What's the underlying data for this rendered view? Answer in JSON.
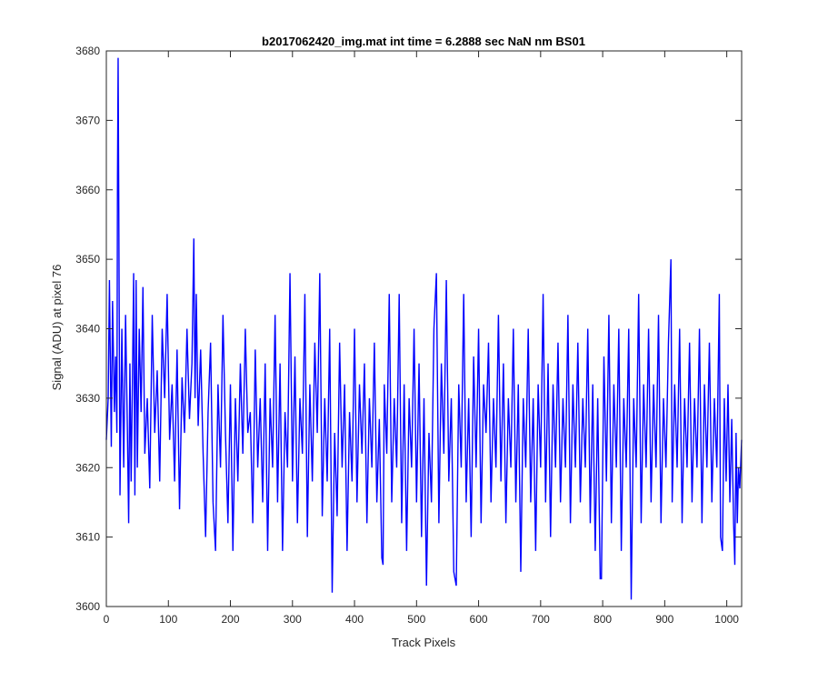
{
  "chart_data": {
    "type": "line",
    "title": "b2017062420_img.mat int time = 6.2888 sec  NaN nm BS01",
    "xlabel": "Track Pixels",
    "ylabel": "Signal (ADU) at pixel 76",
    "xlim": [
      0,
      1024
    ],
    "ylim": [
      3600,
      3680
    ],
    "xticks": [
      0,
      100,
      200,
      300,
      400,
      500,
      600,
      700,
      800,
      900,
      1000
    ],
    "yticks": [
      3600,
      3610,
      3620,
      3630,
      3640,
      3650,
      3660,
      3670,
      3680
    ],
    "grid": false,
    "series_color": "#0000ff",
    "series": [
      {
        "points": [
          [
            0,
            3624
          ],
          [
            3,
            3630
          ],
          [
            5,
            3647
          ],
          [
            8,
            3623
          ],
          [
            10,
            3644
          ],
          [
            13,
            3628
          ],
          [
            15,
            3636
          ],
          [
            17,
            3625
          ],
          [
            18,
            3662
          ],
          [
            19,
            3679
          ],
          [
            20,
            3659
          ],
          [
            22,
            3616
          ],
          [
            25,
            3640
          ],
          [
            28,
            3620
          ],
          [
            31,
            3642
          ],
          [
            34,
            3625
          ],
          [
            36,
            3612
          ],
          [
            38,
            3635
          ],
          [
            40,
            3618
          ],
          [
            42,
            3632
          ],
          [
            44,
            3648
          ],
          [
            46,
            3616
          ],
          [
            48,
            3647
          ],
          [
            50,
            3620
          ],
          [
            53,
            3640
          ],
          [
            56,
            3628
          ],
          [
            59,
            3646
          ],
          [
            62,
            3622
          ],
          [
            66,
            3630
          ],
          [
            70,
            3617
          ],
          [
            74,
            3642
          ],
          [
            78,
            3625
          ],
          [
            82,
            3634
          ],
          [
            86,
            3618
          ],
          [
            90,
            3640
          ],
          [
            94,
            3630
          ],
          [
            98,
            3645
          ],
          [
            102,
            3624
          ],
          [
            106,
            3632
          ],
          [
            110,
            3618
          ],
          [
            114,
            3637
          ],
          [
            118,
            3614
          ],
          [
            122,
            3633
          ],
          [
            126,
            3625
          ],
          [
            130,
            3640
          ],
          [
            134,
            3627
          ],
          [
            138,
            3635
          ],
          [
            141,
            3653
          ],
          [
            143,
            3630
          ],
          [
            145,
            3645
          ],
          [
            148,
            3626
          ],
          [
            152,
            3637
          ],
          [
            156,
            3622
          ],
          [
            160,
            3610
          ],
          [
            164,
            3628
          ],
          [
            168,
            3638
          ],
          [
            172,
            3615
          ],
          [
            176,
            3608
          ],
          [
            180,
            3632
          ],
          [
            184,
            3620
          ],
          [
            188,
            3642
          ],
          [
            192,
            3625
          ],
          [
            196,
            3612
          ],
          [
            200,
            3632
          ],
          [
            204,
            3608
          ],
          [
            208,
            3630
          ],
          [
            212,
            3618
          ],
          [
            216,
            3635
          ],
          [
            220,
            3622
          ],
          [
            224,
            3640
          ],
          [
            228,
            3625
          ],
          [
            232,
            3628
          ],
          [
            236,
            3612
          ],
          [
            240,
            3637
          ],
          [
            244,
            3620
          ],
          [
            248,
            3630
          ],
          [
            252,
            3615
          ],
          [
            256,
            3635
          ],
          [
            260,
            3608
          ],
          [
            264,
            3630
          ],
          [
            268,
            3620
          ],
          [
            272,
            3642
          ],
          [
            276,
            3615
          ],
          [
            280,
            3635
          ],
          [
            284,
            3608
          ],
          [
            288,
            3628
          ],
          [
            292,
            3620
          ],
          [
            296,
            3648
          ],
          [
            300,
            3618
          ],
          [
            304,
            3636
          ],
          [
            308,
            3612
          ],
          [
            312,
            3630
          ],
          [
            316,
            3622
          ],
          [
            320,
            3645
          ],
          [
            324,
            3610
          ],
          [
            328,
            3632
          ],
          [
            332,
            3618
          ],
          [
            336,
            3638
          ],
          [
            340,
            3625
          ],
          [
            344,
            3648
          ],
          [
            348,
            3613
          ],
          [
            352,
            3630
          ],
          [
            356,
            3618
          ],
          [
            360,
            3640
          ],
          [
            364,
            3602
          ],
          [
            368,
            3625
          ],
          [
            372,
            3613
          ],
          [
            376,
            3638
          ],
          [
            380,
            3620
          ],
          [
            384,
            3632
          ],
          [
            388,
            3608
          ],
          [
            392,
            3628
          ],
          [
            396,
            3618
          ],
          [
            400,
            3640
          ],
          [
            404,
            3615
          ],
          [
            408,
            3632
          ],
          [
            412,
            3622
          ],
          [
            416,
            3635
          ],
          [
            420,
            3612
          ],
          [
            424,
            3630
          ],
          [
            428,
            3620
          ],
          [
            432,
            3638
          ],
          [
            436,
            3615
          ],
          [
            440,
            3627
          ],
          [
            444,
            3607
          ],
          [
            446,
            3606
          ],
          [
            448,
            3632
          ],
          [
            452,
            3622
          ],
          [
            456,
            3645
          ],
          [
            460,
            3615
          ],
          [
            464,
            3630
          ],
          [
            468,
            3620
          ],
          [
            472,
            3645
          ],
          [
            476,
            3612
          ],
          [
            480,
            3632
          ],
          [
            484,
            3608
          ],
          [
            488,
            3630
          ],
          [
            492,
            3620
          ],
          [
            496,
            3640
          ],
          [
            500,
            3615
          ],
          [
            504,
            3635
          ],
          [
            508,
            3610
          ],
          [
            512,
            3630
          ],
          [
            516,
            3603
          ],
          [
            520,
            3625
          ],
          [
            524,
            3615
          ],
          [
            528,
            3640
          ],
          [
            532,
            3648
          ],
          [
            536,
            3612
          ],
          [
            540,
            3635
          ],
          [
            544,
            3622
          ],
          [
            548,
            3647
          ],
          [
            552,
            3618
          ],
          [
            556,
            3630
          ],
          [
            560,
            3605
          ],
          [
            564,
            3603
          ],
          [
            568,
            3632
          ],
          [
            572,
            3620
          ],
          [
            576,
            3645
          ],
          [
            580,
            3615
          ],
          [
            584,
            3630
          ],
          [
            588,
            3610
          ],
          [
            592,
            3636
          ],
          [
            596,
            3620
          ],
          [
            600,
            3640
          ],
          [
            604,
            3612
          ],
          [
            608,
            3632
          ],
          [
            612,
            3625
          ],
          [
            616,
            3638
          ],
          [
            620,
            3615
          ],
          [
            624,
            3630
          ],
          [
            628,
            3620
          ],
          [
            632,
            3642
          ],
          [
            636,
            3618
          ],
          [
            640,
            3635
          ],
          [
            644,
            3612
          ],
          [
            648,
            3630
          ],
          [
            652,
            3620
          ],
          [
            656,
            3640
          ],
          [
            660,
            3615
          ],
          [
            664,
            3632
          ],
          [
            668,
            3605
          ],
          [
            672,
            3630
          ],
          [
            676,
            3620
          ],
          [
            680,
            3640
          ],
          [
            684,
            3615
          ],
          [
            688,
            3630
          ],
          [
            692,
            3608
          ],
          [
            696,
            3632
          ],
          [
            700,
            3620
          ],
          [
            704,
            3645
          ],
          [
            708,
            3615
          ],
          [
            712,
            3635
          ],
          [
            716,
            3610
          ],
          [
            720,
            3632
          ],
          [
            724,
            3620
          ],
          [
            728,
            3638
          ],
          [
            732,
            3615
          ],
          [
            736,
            3630
          ],
          [
            740,
            3620
          ],
          [
            744,
            3642
          ],
          [
            748,
            3612
          ],
          [
            752,
            3632
          ],
          [
            756,
            3620
          ],
          [
            760,
            3638
          ],
          [
            764,
            3615
          ],
          [
            768,
            3630
          ],
          [
            772,
            3620
          ],
          [
            776,
            3640
          ],
          [
            780,
            3612
          ],
          [
            784,
            3632
          ],
          [
            788,
            3608
          ],
          [
            792,
            3630
          ],
          [
            796,
            3604
          ],
          [
            798,
            3604
          ],
          [
            802,
            3636
          ],
          [
            806,
            3618
          ],
          [
            810,
            3642
          ],
          [
            814,
            3612
          ],
          [
            818,
            3632
          ],
          [
            822,
            3620
          ],
          [
            826,
            3640
          ],
          [
            830,
            3608
          ],
          [
            834,
            3630
          ],
          [
            838,
            3620
          ],
          [
            842,
            3640
          ],
          [
            846,
            3601
          ],
          [
            850,
            3630
          ],
          [
            854,
            3620
          ],
          [
            858,
            3645
          ],
          [
            862,
            3612
          ],
          [
            866,
            3632
          ],
          [
            870,
            3620
          ],
          [
            874,
            3640
          ],
          [
            878,
            3615
          ],
          [
            882,
            3632
          ],
          [
            886,
            3620
          ],
          [
            890,
            3642
          ],
          [
            894,
            3612
          ],
          [
            898,
            3630
          ],
          [
            902,
            3620
          ],
          [
            906,
            3638
          ],
          [
            910,
            3650
          ],
          [
            912,
            3615
          ],
          [
            916,
            3632
          ],
          [
            920,
            3620
          ],
          [
            924,
            3640
          ],
          [
            928,
            3612
          ],
          [
            932,
            3630
          ],
          [
            936,
            3620
          ],
          [
            940,
            3638
          ],
          [
            944,
            3615
          ],
          [
            948,
            3630
          ],
          [
            952,
            3620
          ],
          [
            956,
            3640
          ],
          [
            960,
            3612
          ],
          [
            964,
            3632
          ],
          [
            968,
            3620
          ],
          [
            972,
            3638
          ],
          [
            976,
            3615
          ],
          [
            980,
            3630
          ],
          [
            984,
            3620
          ],
          [
            988,
            3645
          ],
          [
            990,
            3610
          ],
          [
            993,
            3608
          ],
          [
            996,
            3630
          ],
          [
            999,
            3618
          ],
          [
            1002,
            3632
          ],
          [
            1005,
            3615
          ],
          [
            1008,
            3627
          ],
          [
            1011,
            3612
          ],
          [
            1013,
            3606
          ],
          [
            1015,
            3625
          ],
          [
            1017,
            3612
          ],
          [
            1019,
            3620
          ],
          [
            1021,
            3617
          ],
          [
            1024,
            3624
          ]
        ]
      }
    ]
  }
}
